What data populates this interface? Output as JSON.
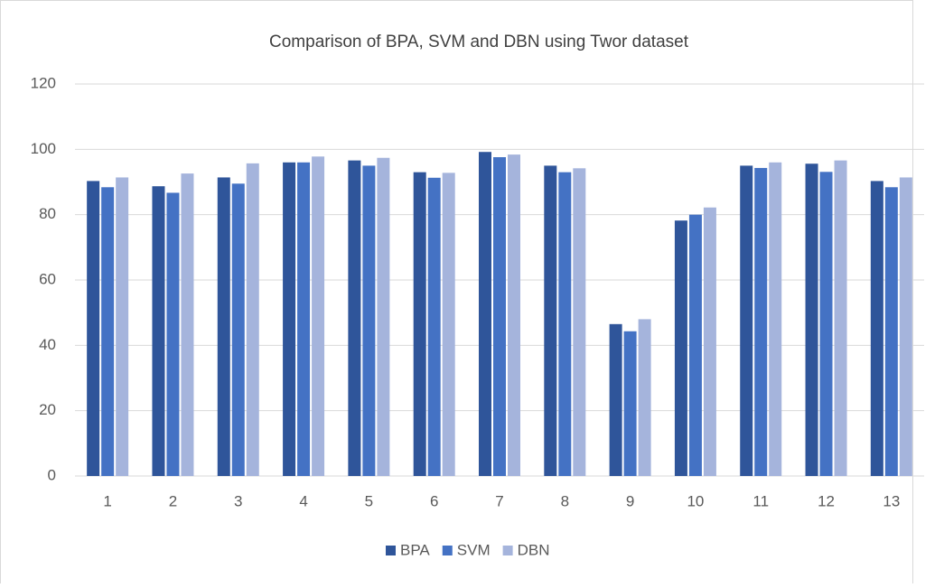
{
  "chart_data": {
    "type": "bar",
    "title": "Comparison of BPA, SVM and DBN using Twor dataset",
    "categories": [
      "1",
      "2",
      "3",
      "4",
      "5",
      "6",
      "7",
      "8",
      "9",
      "10",
      "11",
      "12",
      "13"
    ],
    "series": [
      {
        "name": "BPA",
        "color": "#2f559a",
        "values": [
          90.3,
          88.7,
          91.4,
          96,
          96.6,
          93,
          99.2,
          95,
          46.5,
          78.2,
          95,
          95.6,
          90.3
        ]
      },
      {
        "name": "SVM",
        "color": "#4472c4",
        "values": [
          88.4,
          86.7,
          89.5,
          96,
          95,
          91.3,
          97.6,
          93,
          44.3,
          80,
          94.3,
          93.1,
          88.4
        ]
      },
      {
        "name": "DBN",
        "color": "#a5b4dc",
        "values": [
          91.4,
          92.6,
          95.7,
          97.8,
          97.4,
          92.8,
          98.4,
          94.2,
          48,
          82.2,
          96,
          96.6,
          91.4
        ]
      }
    ],
    "ylim": [
      0,
      120
    ],
    "yticks": [
      0,
      20,
      40,
      60,
      80,
      100,
      120
    ],
    "grid": true,
    "legend": "bottom"
  }
}
